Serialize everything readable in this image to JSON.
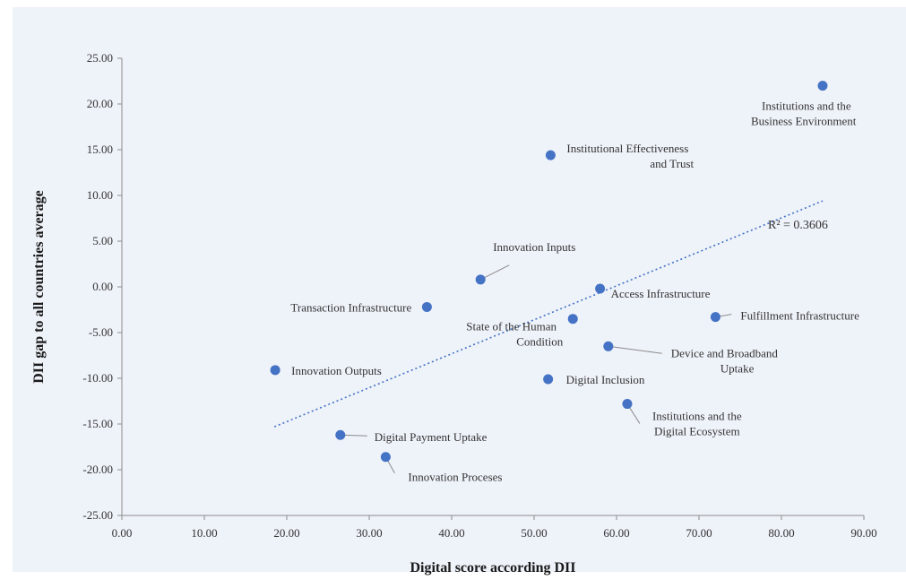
{
  "chart_data": {
    "type": "scatter",
    "xlabel": "Digital score according DII",
    "ylabel": "DII gap to all countries average",
    "xlim": [
      0,
      90
    ],
    "ylim": [
      -25,
      25
    ],
    "x_ticks": [
      "0.00",
      "10.00",
      "20.00",
      "30.00",
      "40.00",
      "50.00",
      "60.00",
      "70.00",
      "80.00",
      "90.00"
    ],
    "y_ticks": [
      "25.00",
      "20.00",
      "15.00",
      "10.00",
      "5.00",
      "0.00",
      "-5.00",
      "-10.00",
      "-15.00",
      "-20.00",
      "-25.00"
    ],
    "point_color": "#4472c4",
    "trendline": {
      "style": "dotted",
      "color": "#4472c4",
      "label": "R² = 0.3606",
      "x": [
        18.5,
        85
      ],
      "y": [
        -15.3,
        9.4
      ]
    },
    "points": [
      {
        "label": [
          "Institutions and the",
          "Business Environment"
        ],
        "x": 85.0,
        "y": 22.0
      },
      {
        "label": [
          "Institutional Effectiveness",
          "and Trust"
        ],
        "x": 52.0,
        "y": 14.4
      },
      {
        "label": [
          "Innovation Inputs"
        ],
        "x": 43.5,
        "y": 0.8
      },
      {
        "label": [
          "Access Infrastructure"
        ],
        "x": 58.0,
        "y": -0.2
      },
      {
        "label": [
          "Transaction Infrastructure"
        ],
        "x": 37.0,
        "y": -2.2
      },
      {
        "label": [
          "State of the Human",
          "Condition"
        ],
        "x": 54.7,
        "y": -3.5
      },
      {
        "label": [
          "Fulfillment Infrastructure"
        ],
        "x": 72.0,
        "y": -3.3
      },
      {
        "label": [
          "Device and Broadband",
          "Uptake"
        ],
        "x": 59.0,
        "y": -6.5
      },
      {
        "label": [
          "Innovation Outputs"
        ],
        "x": 18.6,
        "y": -9.1
      },
      {
        "label": [
          "Digital Inclusion"
        ],
        "x": 51.7,
        "y": -10.1
      },
      {
        "label": [
          "Institutions and the",
          "Digital Ecosystem"
        ],
        "x": 61.3,
        "y": -12.8
      },
      {
        "label": [
          "Digital Payment Uptake"
        ],
        "x": 26.5,
        "y": -16.2
      },
      {
        "label": [
          "Innovation Proceses"
        ],
        "x": 32.0,
        "y": -18.6
      }
    ]
  }
}
